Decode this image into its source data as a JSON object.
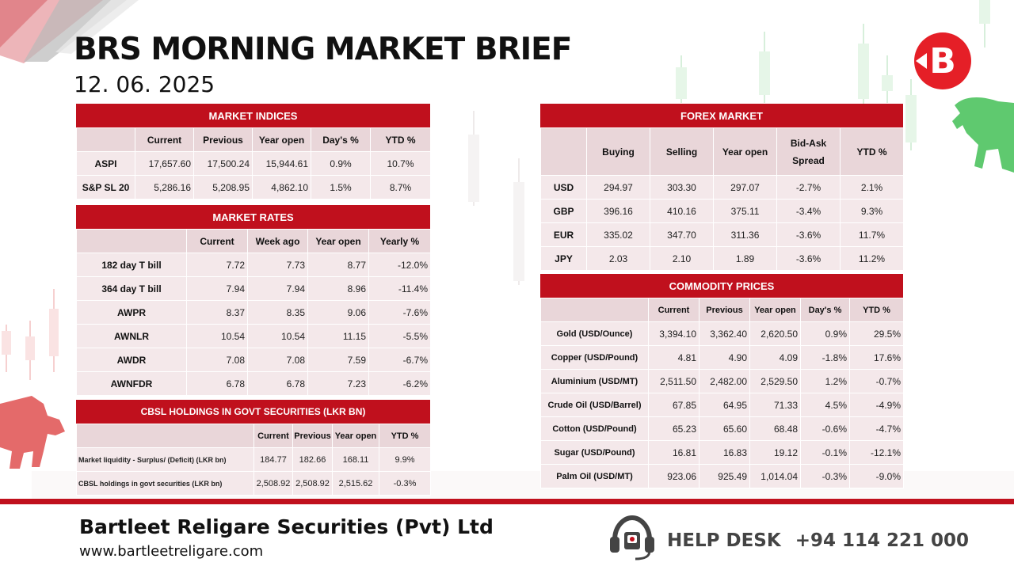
{
  "header": {
    "title": "BRS MORNING MARKET BRIEF",
    "date": "12. 06. 2025"
  },
  "brand": {
    "primary": "#c0101d",
    "accent_green": "#5fc96f",
    "accent_red_bear": "#e46a6a"
  },
  "market_indices": {
    "title": "MARKET INDICES",
    "columns": [
      "",
      "Current",
      "Previous",
      "Year open",
      "Day's %",
      "YTD %"
    ],
    "rows": [
      [
        "ASPI",
        "17,657.60",
        "17,500.24",
        "15,944.61",
        "0.9%",
        "10.7%"
      ],
      [
        "S&P SL 20",
        "5,286.16",
        "5,208.95",
        "4,862.10",
        "1.5%",
        "8.7%"
      ]
    ]
  },
  "market_rates": {
    "title": "MARKET RATES",
    "columns": [
      "",
      "Current",
      "Week ago",
      "Year open",
      "Yearly %"
    ],
    "rows": [
      [
        "182 day T bill",
        "7.72",
        "7.73",
        "8.77",
        "-12.0%"
      ],
      [
        "364 day T bill",
        "7.94",
        "7.94",
        "8.96",
        "-11.4%"
      ],
      [
        "AWPR",
        "8.37",
        "8.35",
        "9.06",
        "-7.6%"
      ],
      [
        "AWNLR",
        "10.54",
        "10.54",
        "11.15",
        "-5.5%"
      ],
      [
        "AWDR",
        "7.08",
        "7.08",
        "7.59",
        "-6.7%"
      ],
      [
        "AWNFDR",
        "6.78",
        "6.78",
        "7.23",
        "-6.2%"
      ]
    ]
  },
  "cbsl_holdings": {
    "title": "CBSL HOLDINGS IN GOVT SECURITIES (LKR BN)",
    "columns": [
      "",
      "Current",
      "Previous",
      "Year open",
      "YTD %"
    ],
    "rows": [
      [
        "Market liquidity - Surplus/ (Deficit) (LKR bn)",
        "184.77",
        "182.66",
        "168.11",
        "9.9%"
      ],
      [
        "CBSL holdings in govt securities (LKR bn)",
        "2,508.92",
        "2,508.92",
        "2,515.62",
        "-0.3%"
      ]
    ]
  },
  "forex_market": {
    "title": "FOREX MARKET",
    "columns": [
      "",
      "Buying",
      "Selling",
      "Year open",
      "Bid-Ask Spread",
      "YTD %"
    ],
    "rows": [
      [
        "USD",
        "294.97",
        "303.30",
        "297.07",
        "-2.7%",
        "2.1%"
      ],
      [
        "GBP",
        "396.16",
        "410.16",
        "375.11",
        "-3.4%",
        "9.3%"
      ],
      [
        "EUR",
        "335.02",
        "347.70",
        "311.36",
        "-3.6%",
        "11.7%"
      ],
      [
        "JPY",
        "2.03",
        "2.10",
        "1.89",
        "-3.6%",
        "11.2%"
      ]
    ]
  },
  "commodity_prices": {
    "title": "COMMODITY PRICES",
    "columns": [
      "",
      "Current",
      "Previous",
      "Year open",
      "Day's %",
      "YTD %"
    ],
    "rows": [
      [
        "Gold (USD/Ounce)",
        "3,394.10",
        "3,362.40",
        "2,620.50",
        "0.9%",
        "29.5%"
      ],
      [
        "Copper (USD/Pound)",
        "4.81",
        "4.90",
        "4.09",
        "-1.8%",
        "17.6%"
      ],
      [
        "Aluminium (USD/MT)",
        "2,511.50",
        "2,482.00",
        "2,529.50",
        "1.2%",
        "-0.7%"
      ],
      [
        "Crude Oil (USD/Barrel)",
        "67.85",
        "64.95",
        "71.33",
        "4.5%",
        "-4.9%"
      ],
      [
        "Cotton (USD/Pound)",
        "65.23",
        "65.60",
        "68.48",
        "-0.6%",
        "-4.7%"
      ],
      [
        "Sugar (USD/Pound)",
        "16.81",
        "16.83",
        "19.12",
        "-0.1%",
        "-12.1%"
      ],
      [
        "Palm Oil (USD/MT)",
        "923.06",
        "925.49",
        "1,014.04",
        "-0.3%",
        "-9.0%"
      ]
    ]
  },
  "footer": {
    "company": "Bartleet Religare Securities (Pvt) Ltd",
    "website": "www.bartleetreligare.com",
    "helpdesk_label": "HELP DESK",
    "helpdesk_number": "+94 114 221 000"
  },
  "icons": {
    "logo": "brs-logo-icon",
    "bull": "bull-icon",
    "bear": "bear-icon",
    "helpdesk": "headset-icon"
  }
}
